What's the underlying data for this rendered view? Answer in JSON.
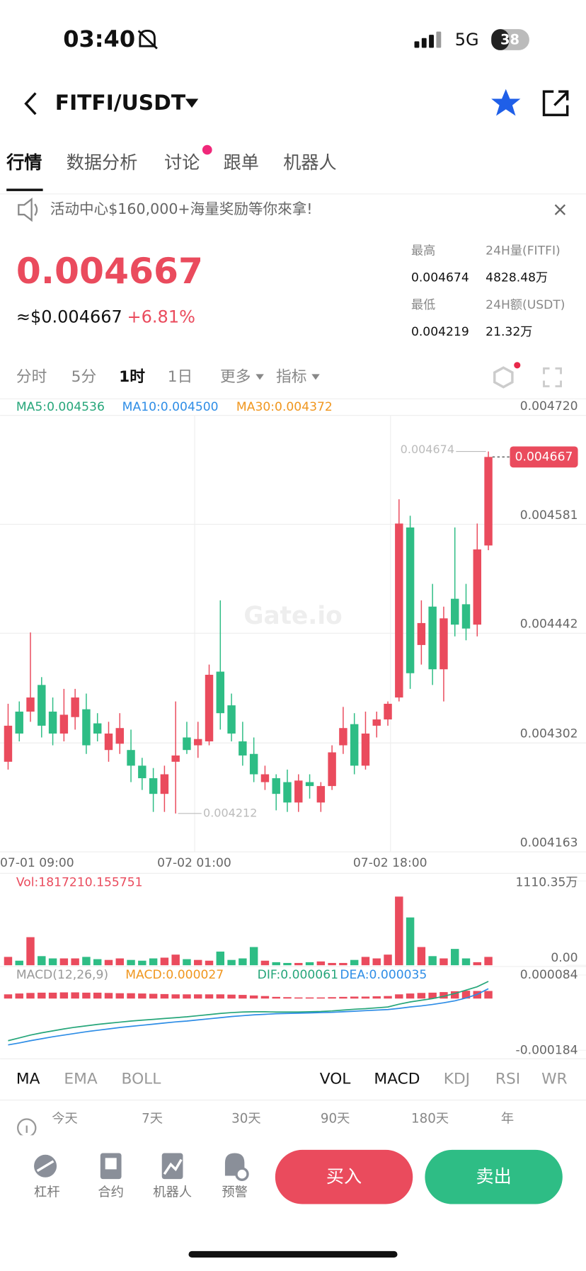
{
  "status_bar": {
    "time": "03:40",
    "network": "5G",
    "battery": "38"
  },
  "header": {
    "pair": "FITFI/USDT"
  },
  "tabs": [
    "行情",
    "数据分析",
    "讨论",
    "跟单",
    "机器人"
  ],
  "banner": "活动中心$160,000+海量奖励等你來拿!",
  "ticker": {
    "price": "0.004667",
    "usd_price": "≈$0.004667",
    "change": "+6.81%",
    "stats": [
      [
        "最高",
        "24H量(FITFI)"
      ],
      [
        "0.004674",
        "4828.48万"
      ],
      [
        "最低",
        "24H额(USDT)"
      ],
      [
        "0.004219",
        "21.32万"
      ]
    ]
  },
  "intervals": [
    "分时",
    "5分",
    "1时",
    "1日",
    "更多",
    "指标"
  ],
  "chart": {
    "type": "candlestick",
    "watermark": "Gate.io",
    "ma_legend": [
      "MA5:0.004536",
      "MA10:0.004500",
      "MA30:0.004372"
    ],
    "ylim": [
      0.004163,
      0.00472
    ],
    "yticks": [
      {
        "value": 0.00472,
        "label": "0.004720"
      },
      0.004581,
      0.004442,
      0.004302,
      0.004163
    ],
    "x_labels": [
      "07-01 09:00",
      "07-02 01:00",
      "07-02 18:00"
    ],
    "candles": [
      {
        "o": 0.004278,
        "h": 0.004352,
        "l": 0.004268,
        "c": 0.004324
      },
      {
        "o": 0.004342,
        "h": 0.004355,
        "l": 0.004304,
        "c": 0.004314
      },
      {
        "o": 0.004342,
        "h": 0.004443,
        "l": 0.004329,
        "c": 0.00436
      },
      {
        "o": 0.004376,
        "h": 0.004386,
        "l": 0.004309,
        "c": 0.004324
      },
      {
        "o": 0.004342,
        "h": 0.00436,
        "l": 0.004299,
        "c": 0.004314
      },
      {
        "o": 0.004314,
        "h": 0.004371,
        "l": 0.004304,
        "c": 0.004338
      },
      {
        "o": 0.004335,
        "h": 0.004371,
        "l": 0.004319,
        "c": 0.00436
      },
      {
        "o": 0.004345,
        "h": 0.004365,
        "l": 0.004288,
        "c": 0.004299
      },
      {
        "o": 0.004327,
        "h": 0.00434,
        "l": 0.004304,
        "c": 0.004314
      },
      {
        "o": 0.004293,
        "h": 0.004329,
        "l": 0.004278,
        "c": 0.004314
      },
      {
        "o": 0.004301,
        "h": 0.00434,
        "l": 0.004288,
        "c": 0.004321
      },
      {
        "o": 0.004293,
        "h": 0.004319,
        "l": 0.004252,
        "c": 0.004273
      },
      {
        "o": 0.004273,
        "h": 0.004283,
        "l": 0.004242,
        "c": 0.004257
      },
      {
        "o": 0.004257,
        "h": 0.00427,
        "l": 0.004214,
        "c": 0.004237
      },
      {
        "o": 0.004237,
        "h": 0.004273,
        "l": 0.004214,
        "c": 0.004262
      },
      {
        "o": 0.004278,
        "h": 0.004355,
        "l": 0.004212,
        "c": 0.004286
      },
      {
        "o": 0.004309,
        "h": 0.004329,
        "l": 0.004288,
        "c": 0.004293
      },
      {
        "o": 0.004299,
        "h": 0.004329,
        "l": 0.004283,
        "c": 0.004307
      },
      {
        "o": 0.004304,
        "h": 0.004402,
        "l": 0.004299,
        "c": 0.004389
      },
      {
        "o": 0.004393,
        "h": 0.004484,
        "l": 0.004319,
        "c": 0.00434
      },
      {
        "o": 0.00435,
        "h": 0.004365,
        "l": 0.004304,
        "c": 0.004314
      },
      {
        "o": 0.004304,
        "h": 0.004329,
        "l": 0.004273,
        "c": 0.004286
      },
      {
        "o": 0.004288,
        "h": 0.004309,
        "l": 0.004252,
        "c": 0.004262
      },
      {
        "o": 0.004252,
        "h": 0.004273,
        "l": 0.004242,
        "c": 0.004262
      },
      {
        "o": 0.004257,
        "h": 0.004262,
        "l": 0.004216,
        "c": 0.004237
      },
      {
        "o": 0.004252,
        "h": 0.004268,
        "l": 0.004214,
        "c": 0.004226
      },
      {
        "o": 0.004226,
        "h": 0.004262,
        "l": 0.004214,
        "c": 0.004254
      },
      {
        "o": 0.004252,
        "h": 0.004262,
        "l": 0.004231,
        "c": 0.004247
      },
      {
        "o": 0.004226,
        "h": 0.004252,
        "l": 0.004214,
        "c": 0.004247
      },
      {
        "o": 0.004247,
        "h": 0.004299,
        "l": 0.004242,
        "c": 0.00429
      },
      {
        "o": 0.004299,
        "h": 0.004348,
        "l": 0.004288,
        "c": 0.004321
      },
      {
        "o": 0.004326,
        "h": 0.00434,
        "l": 0.004262,
        "c": 0.004273
      },
      {
        "o": 0.004273,
        "h": 0.004342,
        "l": 0.004268,
        "c": 0.004314
      },
      {
        "o": 0.004324,
        "h": 0.004342,
        "l": 0.004309,
        "c": 0.004332
      },
      {
        "o": 0.004332,
        "h": 0.004355,
        "l": 0.004324,
        "c": 0.004352
      },
      {
        "o": 0.00436,
        "h": 0.004613,
        "l": 0.004355,
        "c": 0.004582
      },
      {
        "o": 0.004577,
        "h": 0.004592,
        "l": 0.004371,
        "c": 0.004391
      },
      {
        "o": 0.004427,
        "h": 0.004484,
        "l": 0.004402,
        "c": 0.004455
      },
      {
        "o": 0.004476,
        "h": 0.004505,
        "l": 0.004376,
        "c": 0.004396
      },
      {
        "o": 0.004396,
        "h": 0.004476,
        "l": 0.004355,
        "c": 0.004461
      },
      {
        "o": 0.004486,
        "h": 0.004577,
        "l": 0.004438,
        "c": 0.004453
      },
      {
        "o": 0.004479,
        "h": 0.004505,
        "l": 0.004433,
        "c": 0.004448
      },
      {
        "o": 0.004453,
        "h": 0.004582,
        "l": 0.004438,
        "c": 0.004549
      },
      {
        "o": 0.004554,
        "h": 0.004674,
        "l": 0.004548,
        "c": 0.004667
      }
    ],
    "volume": {
      "label": "Vol:1817210.155751",
      "ylim": [
        0,
        1110.35
      ],
      "yticks": [
        {
          "value": 1110.35,
          "label": "1110.35万"
        },
        {
          "value": 0,
          "label": "0.00"
        }
      ],
      "values": [
        110,
        60,
        370,
        120,
        90,
        90,
        90,
        110,
        80,
        70,
        90,
        70,
        60,
        90,
        100,
        140,
        80,
        70,
        60,
        180,
        70,
        90,
        240,
        60,
        40,
        30,
        30,
        40,
        50,
        30,
        30,
        70,
        110,
        90,
        140,
        905,
        630,
        240,
        120,
        90,
        215,
        90,
        40,
        110
      ]
    },
    "macd": {
      "legend": [
        "MACD(12,26,9)",
        "MACD:0.000027",
        "DIF:0.000061",
        "DEA:0.000035"
      ],
      "ylim": [
        -0.000184,
        8.4e-05
      ],
      "yticks": [
        8.4e-05,
        -0.000184
      ],
      "hist": [
        1.5e-05,
        1.8e-05,
        2e-05,
        2.1e-05,
        2.1e-05,
        2.2e-05,
        2.2e-05,
        2.1e-05,
        2.1e-05,
        2e-05,
        1.9e-05,
        1.9e-05,
        1.8e-05,
        1.7e-05,
        1.6e-05,
        1.5e-05,
        1.5e-05,
        1.5e-05,
        1.5e-05,
        1.5e-05,
        1.4e-05,
        1.3e-05,
        1.1e-05,
        9e-06,
        6e-06,
        5e-06,
        4e-06,
        4e-06,
        4e-06,
        5e-06,
        6e-06,
        7e-06,
        7e-06,
        8e-06,
        9e-06,
        1.5e-05,
        1.8e-05,
        2e-05,
        2.1e-05,
        2.3e-05,
        2.6e-05,
        2.8e-05,
        2.7e-05,
        2.7e-05
      ],
      "dif": [
        -0.00015,
        -0.00014,
        -0.00013,
        -0.000122,
        -0.000115,
        -0.000108,
        -0.000102,
        -9.7e-05,
        -9.2e-05,
        -8.8e-05,
        -8.4e-05,
        -8e-05,
        -7.7e-05,
        -7.4e-05,
        -7.1e-05,
        -6.8e-05,
        -6.5e-05,
        -6.1e-05,
        -5.7e-05,
        -5.3e-05,
        -5e-05,
        -4.8e-05,
        -4.7e-05,
        -4.7e-05,
        -4.8e-05,
        -4.8e-05,
        -4.8e-05,
        -4.7e-05,
        -4.6e-05,
        -4.4e-05,
        -4.1e-05,
        -3.8e-05,
        -3.6e-05,
        -3.3e-05,
        -3e-05,
        -2e-05,
        -1.2e-05,
        -6e-06,
        0,
        8e-06,
        1.8e-05,
        3e-05,
        4.2e-05,
        6.1e-05
      ],
      "dea": [
        -0.000165,
        -0.000158,
        -0.00015,
        -0.000143,
        -0.000136,
        -0.00013,
        -0.000124,
        -0.000118,
        -0.000113,
        -0.000108,
        -0.000103,
        -9.9e-05,
        -9.5e-05,
        -9.1e-05,
        -8.7e-05,
        -8.3e-05,
        -8e-05,
        -7.6e-05,
        -7.2e-05,
        -6.8e-05,
        -6.4e-05,
        -6.1e-05,
        -5.8e-05,
        -5.6e-05,
        -5.4e-05,
        -5.3e-05,
        -5.2e-05,
        -5.1e-05,
        -5e-05,
        -4.9e-05,
        -4.7e-05,
        -4.5e-05,
        -4.3e-05,
        -4.1e-05,
        -3.9e-05,
        -3.5e-05,
        -3e-05,
        -2.6e-05,
        -2.1e-05,
        -1.5e-05,
        -8e-06,
        2e-06,
        1.5e-05,
        3.5e-05
      ]
    }
  },
  "indicator_tabs": {
    "main": [
      "MA",
      "EMA",
      "BOLL"
    ],
    "sub": [
      "VOL",
      "MACD",
      "KDJ",
      "RSI",
      "WR"
    ]
  },
  "returns_header": [
    "今天",
    "7天",
    "30天",
    "90天",
    "180天",
    "年"
  ],
  "bottom_nav": [
    "杠杆",
    "合约",
    "机器人",
    "预警"
  ],
  "actions": {
    "buy": "买入",
    "sell": "卖出"
  }
}
